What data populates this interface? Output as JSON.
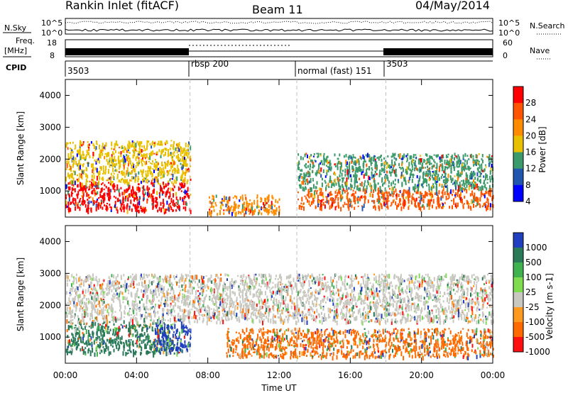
{
  "header": {
    "station": "Rankin Inlet (fitACF)",
    "beam": "Beam 11",
    "date": "04/May/2014"
  },
  "params": {
    "nsky_label": "N.Sky",
    "nsearch_label": "N.Search",
    "log_ticks": [
      "10^5",
      "10^0"
    ],
    "freq_label_1": "Freq.",
    "freq_label_2": "[MHz]",
    "freq_ticks": [
      "18",
      "8"
    ],
    "nave_label": "Nave",
    "nave_ticks": [
      "60",
      "0"
    ],
    "cpid_label": "CPID",
    "cpid_segments": [
      {
        "label": "3503",
        "start_hour": 0
      },
      {
        "label": "rbsp 200",
        "start_hour": 7
      },
      {
        "label": "normal (fast) 151",
        "start_hour": 13
      },
      {
        "label": "3503",
        "start_hour": 18
      }
    ]
  },
  "chart_data": [
    {
      "type": "heatmap",
      "title": "",
      "ylabel": "Slant Range [km]",
      "xlabel": "",
      "xlim": [
        "00:00",
        "24:00"
      ],
      "ylim": [
        180,
        4500
      ],
      "yticks": [
        1000,
        2000,
        3000,
        4000
      ],
      "grid": false,
      "colorbar": {
        "label": "Power [dB]",
        "tick_labels": [
          "28",
          "24",
          "20",
          "16",
          "12",
          "8",
          "4"
        ],
        "colors": [
          "#ff0000",
          "#ff5500",
          "#ff8c00",
          "#e8c000",
          "#3a9a6a",
          "#2055b0",
          "#0000ff"
        ]
      },
      "dominant_regions": [
        {
          "start_hour": 0,
          "end_hour": 7,
          "range_km": [
            400,
            1300
          ],
          "value_db": 28
        },
        {
          "start_hour": 0,
          "end_hour": 7,
          "range_km": [
            1300,
            2600
          ],
          "value_db": 16
        },
        {
          "start_hour": 8,
          "end_hour": 12,
          "range_km": [
            300,
            900
          ],
          "value_db": 20
        },
        {
          "start_hour": 13,
          "end_hour": 24,
          "range_km": [
            500,
            1100
          ],
          "value_db": 22
        },
        {
          "start_hour": 13,
          "end_hour": 24,
          "range_km": [
            1100,
            2200
          ],
          "value_db": 12
        }
      ]
    },
    {
      "type": "heatmap",
      "title": "",
      "ylabel": "Slant Range [km]",
      "xlabel": "Time UT",
      "xlim": [
        "00:00",
        "24:00"
      ],
      "ylim": [
        180,
        4500
      ],
      "yticks": [
        1000,
        2000,
        3000,
        4000
      ],
      "xticks": [
        "00:00",
        "04:00",
        "08:00",
        "12:00",
        "16:00",
        "20:00",
        "00:00"
      ],
      "grid": false,
      "colorbar": {
        "label": "Velocity [m s-1]",
        "tick_labels": [
          "1000",
          "500",
          "100",
          "25",
          "-25",
          "-100",
          "-500",
          "-1000"
        ],
        "colors": [
          "#1f3fbf",
          "#2a7a5a",
          "#3fb14f",
          "#7fdc4f",
          "#c8c8c0",
          "#ff9a20",
          "#ff6a00",
          "#ff1010"
        ]
      },
      "dominant_regions": [
        {
          "start_hour": 0,
          "end_hour": 6,
          "range_km": [
            500,
            1500
          ],
          "value_ms": 300
        },
        {
          "start_hour": 5,
          "end_hour": 7,
          "range_km": [
            500,
            1600
          ],
          "value_ms": 800
        },
        {
          "start_hour": 0,
          "end_hour": 24,
          "range_km": [
            1500,
            3000
          ],
          "value_ms": 0
        },
        {
          "start_hour": 9,
          "end_hour": 24,
          "range_km": [
            400,
            1300
          ],
          "value_ms": -300
        }
      ]
    }
  ],
  "colors": {
    "dashed_guides": "#c0c0c0",
    "axis": "#000000"
  }
}
